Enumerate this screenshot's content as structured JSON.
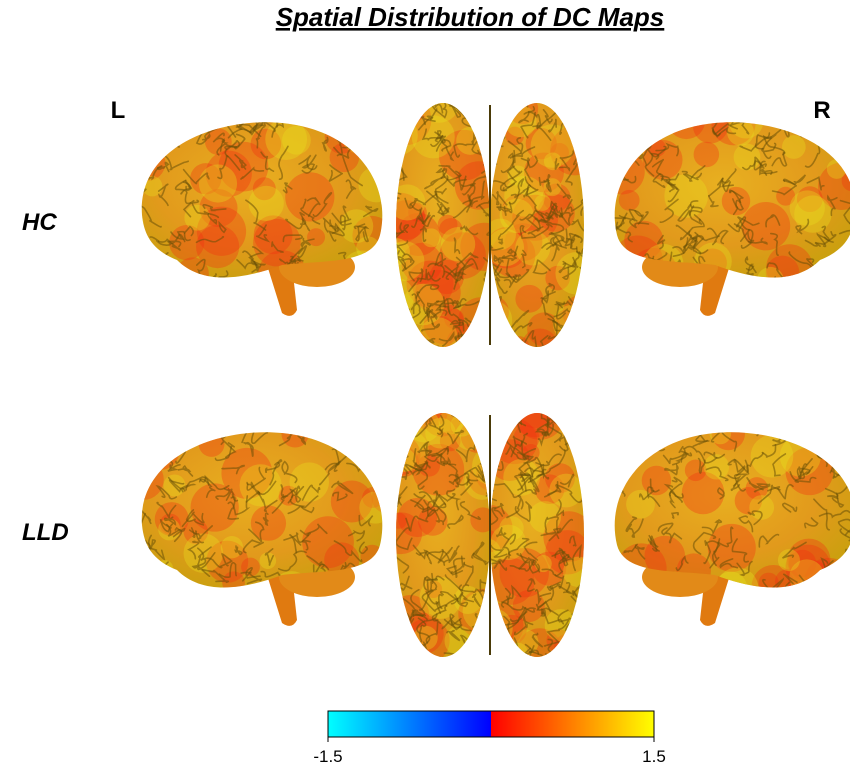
{
  "title": "Spatial Distribution of DC Maps",
  "side_labels": {
    "left": "L",
    "right": "R"
  },
  "rows": [
    "HC",
    "LLD"
  ],
  "colorbar": {
    "min": -1.5,
    "max": 1.5,
    "colors": [
      "#00ffff",
      "#0000ff",
      "#ff0000",
      "#ffff00"
    ]
  }
}
